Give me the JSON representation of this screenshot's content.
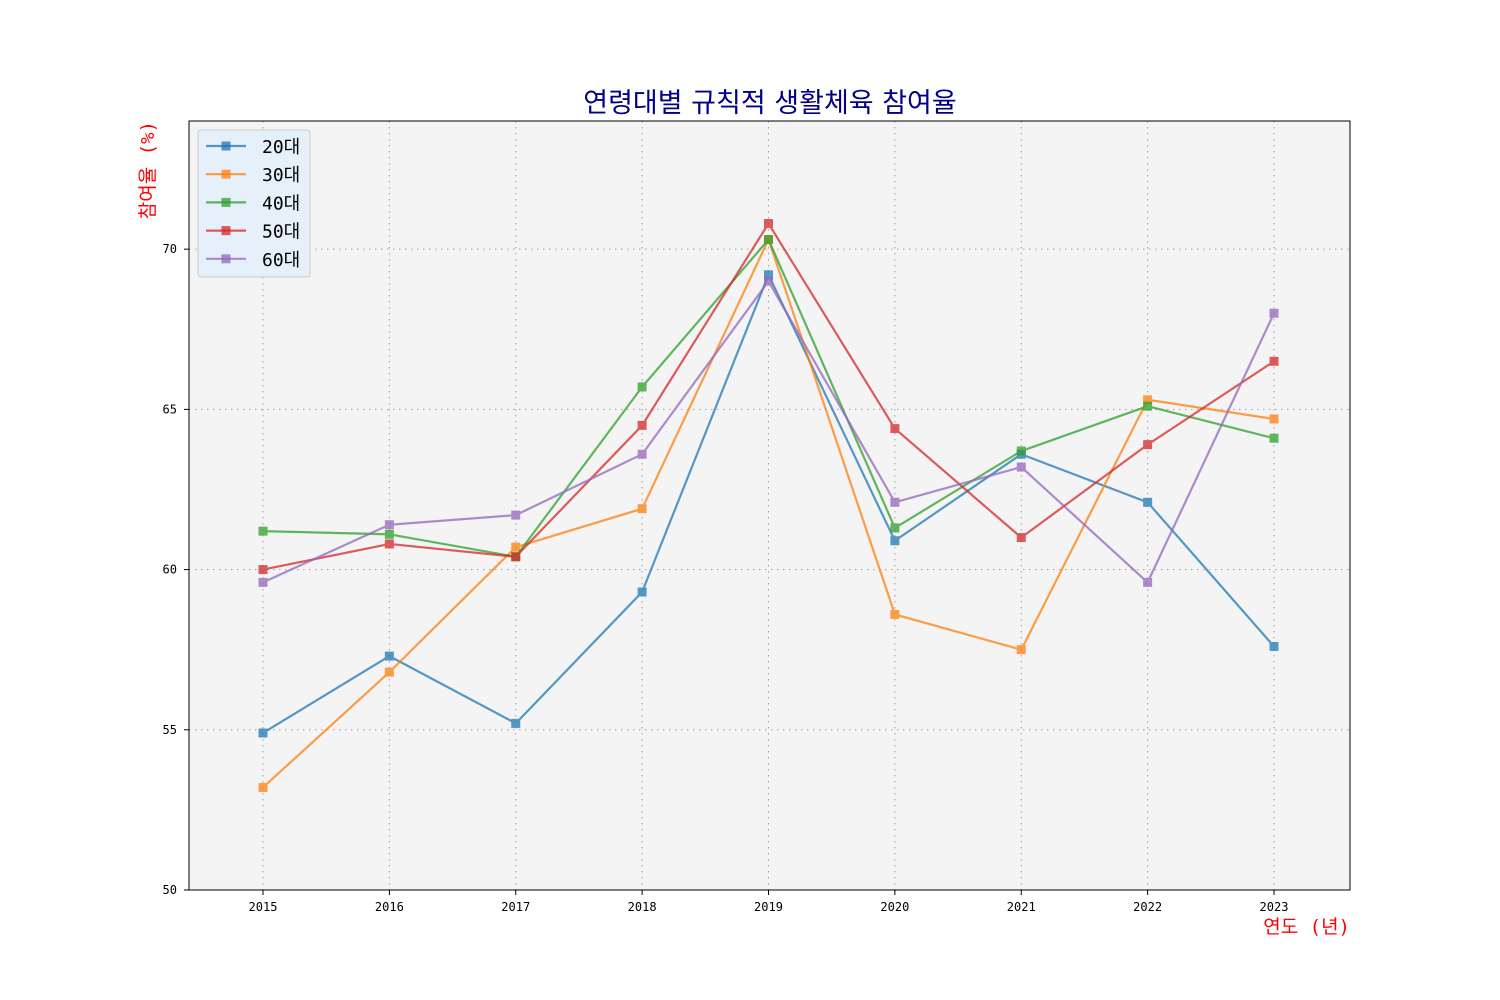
{
  "chart_data": {
    "type": "line",
    "title": "연령대별 규칙적 생활체육 참여율",
    "xlabel": "연도 (년)",
    "ylabel": "참여율 (%)",
    "categories": [
      "2015",
      "2016",
      "2017",
      "2018",
      "2019",
      "2020",
      "2021",
      "2022",
      "2023"
    ],
    "ylim": [
      50,
      74
    ],
    "yticks": [
      50,
      55,
      60,
      65,
      70
    ],
    "grid": true,
    "legend_position": "upper-left",
    "marker": "square",
    "series": [
      {
        "name": "20대",
        "color": "#1f77b4",
        "values": [
          54.9,
          57.3,
          55.2,
          59.3,
          69.2,
          60.9,
          63.6,
          62.1,
          57.6
        ]
      },
      {
        "name": "30대",
        "color": "#ff7f0e",
        "values": [
          53.2,
          56.8,
          60.7,
          61.9,
          70.3,
          58.6,
          57.5,
          65.3,
          64.7
        ]
      },
      {
        "name": "40대",
        "color": "#2ca02c",
        "values": [
          61.2,
          61.1,
          60.4,
          65.7,
          70.3,
          61.3,
          63.7,
          65.1,
          64.1
        ]
      },
      {
        "name": "50대",
        "color": "#d62728",
        "values": [
          60.0,
          60.8,
          60.4,
          64.5,
          70.8,
          64.4,
          61.0,
          63.9,
          66.5
        ]
      },
      {
        "name": "60대",
        "color": "#9467bd",
        "values": [
          59.6,
          61.4,
          61.7,
          63.6,
          69.0,
          62.1,
          63.2,
          59.6,
          68.0
        ]
      }
    ]
  }
}
